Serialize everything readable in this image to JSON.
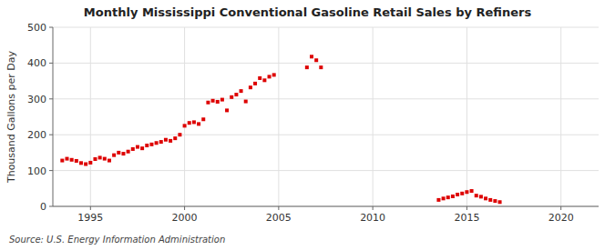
{
  "chart_data": {
    "type": "scatter",
    "title": "Monthly Mississippi Conventional Gasoline Retail Sales by Refiners",
    "y_label": "Thousand Gallons per Day",
    "source": "Source: U.S. Energy Information Administration",
    "color": "#dd0000",
    "marker": "square",
    "grid": true,
    "xlim": [
      1993.0,
      2022.0
    ],
    "ylim": [
      0,
      500
    ],
    "xticks": [
      1995,
      2000,
      2005,
      2010,
      2015,
      2020
    ],
    "yticks": [
      0,
      100,
      200,
      300,
      400,
      500
    ],
    "x": [
      1993.5,
      1993.75,
      1994.0,
      1994.25,
      1994.5,
      1994.75,
      1995.0,
      1995.25,
      1995.5,
      1995.75,
      1996.0,
      1996.25,
      1996.5,
      1996.75,
      1997.0,
      1997.25,
      1997.5,
      1997.75,
      1998.0,
      1998.25,
      1998.5,
      1998.75,
      1999.0,
      1999.25,
      1999.5,
      1999.75,
      2000.0,
      2000.25,
      2000.5,
      2000.75,
      2001.0,
      2001.25,
      2001.5,
      2001.75,
      2002.0,
      2002.25,
      2002.5,
      2002.75,
      2003.0,
      2003.25,
      2003.5,
      2003.75,
      2004.0,
      2004.25,
      2004.5,
      2004.75,
      2006.5,
      2006.75,
      2007.0,
      2007.25,
      2013.5,
      2013.75,
      2014.0,
      2014.25,
      2014.5,
      2014.75,
      2015.0,
      2015.25,
      2015.5,
      2015.75,
      2016.0,
      2016.25,
      2016.5,
      2016.75
    ],
    "values": [
      128,
      133,
      130,
      127,
      121,
      118,
      122,
      132,
      136,
      133,
      128,
      143,
      150,
      147,
      153,
      160,
      166,
      162,
      170,
      173,
      177,
      180,
      186,
      183,
      190,
      200,
      225,
      233,
      235,
      230,
      243,
      290,
      295,
      292,
      298,
      268,
      305,
      312,
      322,
      293,
      332,
      343,
      358,
      352,
      362,
      367,
      388,
      418,
      408,
      388,
      18,
      22,
      25,
      28,
      33,
      36,
      40,
      43,
      30,
      27,
      22,
      18,
      15,
      12
    ]
  }
}
